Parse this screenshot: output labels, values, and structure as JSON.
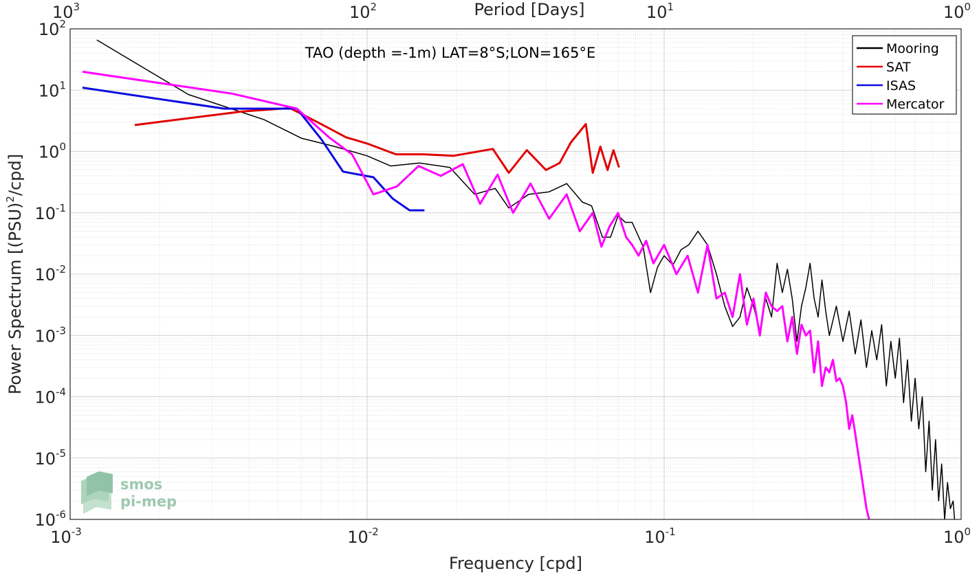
{
  "chart_data": {
    "type": "line",
    "title": "TAO (depth =-1m) LAT=8°S;LON=165°E",
    "xlabel": "Frequency [cpd]",
    "ylabel": "Power Spectrum [(PSU)²/cpd]",
    "ylabel_parts": {
      "before": "Power Spectrum [(PSU)",
      "sup": "2",
      "after": "/cpd]"
    },
    "top_xlabel": "Period [Days]",
    "x_scale": "log",
    "y_scale": "log",
    "xlim": [
      0.001,
      1
    ],
    "ylim": [
      1e-06,
      100
    ],
    "grid": true,
    "legend_position": "top-right",
    "x_ticks": [
      {
        "value": 0.001,
        "base": "10",
        "exp": "-3"
      },
      {
        "value": 0.01,
        "base": "10",
        "exp": "-2"
      },
      {
        "value": 0.1,
        "base": "10",
        "exp": "-1"
      },
      {
        "value": 1,
        "base": "10",
        "exp": "0"
      }
    ],
    "top_ticks": [
      {
        "value": 0.001,
        "base": "10",
        "exp": "3"
      },
      {
        "value": 0.01,
        "base": "10",
        "exp": "2"
      },
      {
        "value": 0.1,
        "base": "10",
        "exp": "1"
      },
      {
        "value": 1,
        "base": "10",
        "exp": "0"
      }
    ],
    "y_ticks": [
      {
        "value": 100,
        "base": "10",
        "exp": "2"
      },
      {
        "value": 10,
        "base": "10",
        "exp": "1"
      },
      {
        "value": 1,
        "base": "10",
        "exp": "0"
      },
      {
        "value": 0.1,
        "base": "10",
        "exp": "-1"
      },
      {
        "value": 0.01,
        "base": "10",
        "exp": "-2"
      },
      {
        "value": 0.001,
        "base": "10",
        "exp": "-3"
      },
      {
        "value": 0.0001,
        "base": "10",
        "exp": "-4"
      },
      {
        "value": 1e-05,
        "base": "10",
        "exp": "-5"
      },
      {
        "value": 1e-06,
        "base": "10",
        "exp": "-6"
      }
    ],
    "series": [
      {
        "name": "Mooring",
        "color": "#000000",
        "width": 1.5,
        "x": [
          0.00123,
          0.0025,
          0.0045,
          0.006,
          0.0078,
          0.01,
          0.012,
          0.015,
          0.019,
          0.023,
          0.027,
          0.03,
          0.035,
          0.041,
          0.047,
          0.053,
          0.057,
          0.062,
          0.066,
          0.07,
          0.074,
          0.078,
          0.085,
          0.09,
          0.095,
          0.1,
          0.107,
          0.114,
          0.121,
          0.13,
          0.14,
          0.15,
          0.16,
          0.17,
          0.18,
          0.19,
          0.2,
          0.21,
          0.22,
          0.23,
          0.24,
          0.25,
          0.26,
          0.27,
          0.28,
          0.29,
          0.3,
          0.31,
          0.32,
          0.33,
          0.34,
          0.35,
          0.36,
          0.38,
          0.4,
          0.42,
          0.44,
          0.46,
          0.48,
          0.5,
          0.52,
          0.54,
          0.56,
          0.58,
          0.6,
          0.62,
          0.64,
          0.66,
          0.68,
          0.7,
          0.72,
          0.74,
          0.76,
          0.78,
          0.8,
          0.82,
          0.84,
          0.86,
          0.88,
          0.9,
          0.92,
          0.94,
          0.95
        ],
        "y": [
          66,
          8.5,
          3.3,
          1.65,
          1.2,
          0.85,
          0.58,
          0.65,
          0.55,
          0.2,
          0.25,
          0.12,
          0.2,
          0.22,
          0.3,
          0.15,
          0.13,
          0.04,
          0.04,
          0.09,
          0.07,
          0.07,
          0.028,
          0.005,
          0.013,
          0.02,
          0.014,
          0.025,
          0.03,
          0.05,
          0.03,
          0.01,
          0.003,
          0.0014,
          0.002,
          0.006,
          0.003,
          0.0012,
          0.004,
          0.002,
          0.015,
          0.005,
          0.012,
          0.004,
          0.0008,
          0.003,
          0.006,
          0.015,
          0.004,
          0.002,
          0.008,
          0.0025,
          0.001,
          0.003,
          0.0008,
          0.0025,
          0.0005,
          0.0018,
          0.0003,
          0.0012,
          0.0004,
          0.0015,
          0.00015,
          0.0008,
          0.0002,
          0.0009,
          8e-05,
          0.0004,
          4e-05,
          0.0002,
          3e-05,
          0.0001,
          6e-06,
          4e-05,
          3e-06,
          2e-05,
          2e-06,
          8e-06,
          1e-06,
          4e-06,
          1.5e-06,
          2e-06,
          1e-06
        ]
      },
      {
        "name": "SAT",
        "color": "#e00000",
        "width": 3,
        "x": [
          0.00165,
          0.0038,
          0.0055,
          0.007,
          0.0085,
          0.01,
          0.0125,
          0.0155,
          0.0195,
          0.0265,
          0.03,
          0.0345,
          0.04,
          0.0445,
          0.0485,
          0.0545,
          0.0575,
          0.061,
          0.0645,
          0.0675,
          0.0705
        ],
        "y": [
          2.7,
          4.5,
          5.1,
          2.8,
          1.7,
          1.35,
          0.9,
          0.9,
          0.85,
          1.1,
          0.45,
          1.05,
          0.5,
          0.65,
          1.4,
          2.8,
          0.45,
          1.2,
          0.5,
          1.05,
          0.55
        ]
      },
      {
        "name": "ISAS",
        "color": "#0a0ae0",
        "width": 3,
        "x": [
          0.0011,
          0.0033,
          0.0058,
          0.007,
          0.0083,
          0.0105,
          0.0122,
          0.0139,
          0.0156
        ],
        "y": [
          11,
          5,
          5,
          1.6,
          0.47,
          0.38,
          0.17,
          0.11,
          0.11
        ]
      },
      {
        "name": "Mercator",
        "color": "#ff00ff",
        "width": 3,
        "x": [
          0.0011,
          0.0035,
          0.0058,
          0.0075,
          0.0089,
          0.0105,
          0.0126,
          0.0149,
          0.0177,
          0.021,
          0.024,
          0.0275,
          0.031,
          0.0355,
          0.041,
          0.047,
          0.052,
          0.0575,
          0.0615,
          0.0655,
          0.07,
          0.0745,
          0.078,
          0.082,
          0.087,
          0.092,
          0.1,
          0.11,
          0.12,
          0.13,
          0.14,
          0.15,
          0.16,
          0.17,
          0.18,
          0.19,
          0.2,
          0.21,
          0.22,
          0.23,
          0.24,
          0.25,
          0.26,
          0.27,
          0.28,
          0.29,
          0.3,
          0.31,
          0.32,
          0.33,
          0.34,
          0.35,
          0.36,
          0.37,
          0.38,
          0.39,
          0.4,
          0.41,
          0.42,
          0.43,
          0.44,
          0.45,
          0.46,
          0.47,
          0.48,
          0.49
        ],
        "y": [
          20,
          8.8,
          5,
          1.65,
          0.9,
          0.2,
          0.27,
          0.58,
          0.4,
          0.62,
          0.14,
          0.42,
          0.1,
          0.3,
          0.08,
          0.2,
          0.05,
          0.1,
          0.028,
          0.06,
          0.1,
          0.04,
          0.03,
          0.02,
          0.035,
          0.015,
          0.03,
          0.01,
          0.02,
          0.005,
          0.03,
          0.004,
          0.005,
          0.002,
          0.01,
          0.0015,
          0.004,
          0.001,
          0.005,
          0.003,
          0.0025,
          0.003,
          0.0008,
          0.002,
          0.0005,
          0.0015,
          0.001,
          0.0012,
          0.00025,
          0.0008,
          0.00015,
          0.0003,
          0.00025,
          0.0004,
          0.00018,
          0.0002,
          0.00015,
          8e-05,
          3e-05,
          5e-05,
          2.5e-05,
          1.2e-05,
          6e-06,
          3e-06,
          1.5e-06,
          1e-06
        ]
      }
    ]
  },
  "logo": {
    "line1": "smos",
    "line2": "pi-mep",
    "color": "#8cc0a2"
  }
}
